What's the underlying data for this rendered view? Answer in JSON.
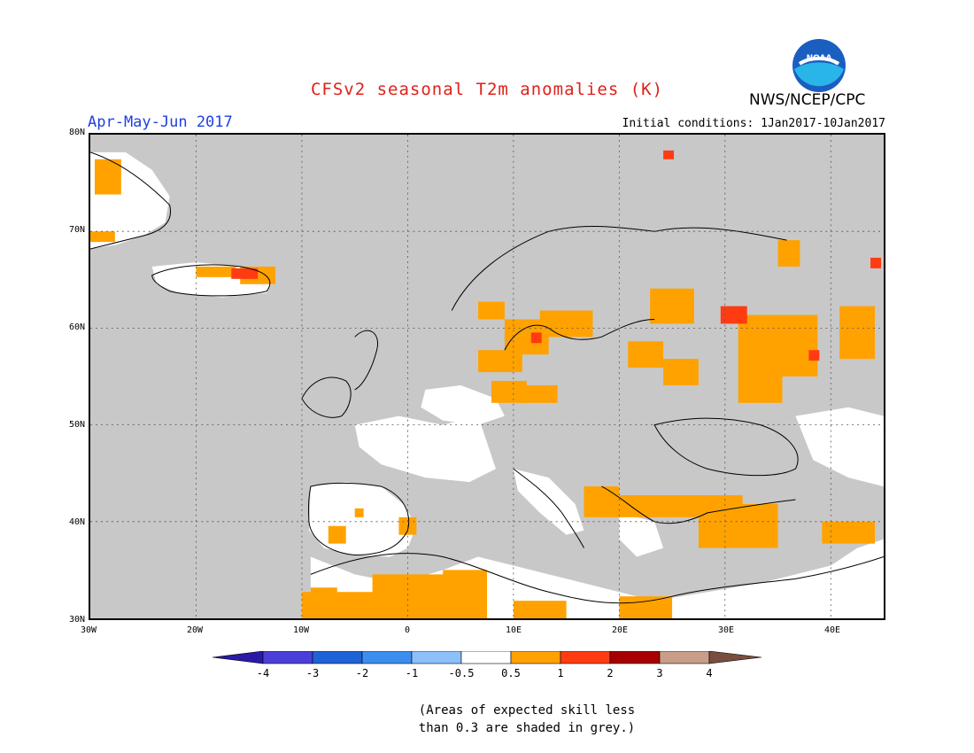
{
  "header": {
    "title": "CFSv2 seasonal T2m anomalies (K)",
    "organization": "NWS/NCEP/CPC",
    "season": "Apr-May-Jun 2017",
    "initial_conditions": "Initial conditions: 1Jan2017-10Jan2017",
    "logo_text": "NOAA"
  },
  "map": {
    "lat_labels": [
      "80N",
      "70N",
      "60N",
      "50N",
      "40N",
      "30N"
    ],
    "lon_labels": [
      "30W",
      "20W",
      "10W",
      "0",
      "10E",
      "20E",
      "30E",
      "40E"
    ],
    "grey_color": "#c8c8c8",
    "ocean_note": "grey = expected skill < 0.3"
  },
  "colorbar": {
    "labels": [
      "-4",
      "-3",
      "-2",
      "-1",
      "-0.5",
      "0.5",
      "1",
      "2",
      "3",
      "4"
    ],
    "colors": [
      "#2a1aa8",
      "#4a3fd8",
      "#1f62d6",
      "#3b8ef0",
      "#8cc0f8",
      "#ffffff",
      "#ffa200",
      "#ff3b12",
      "#a80000",
      "#c89e88",
      "#7a4e3e"
    ]
  },
  "footnote": {
    "line1": "(Areas of expected skill less",
    "line2": "than 0.3 are shaded in grey.)"
  }
}
